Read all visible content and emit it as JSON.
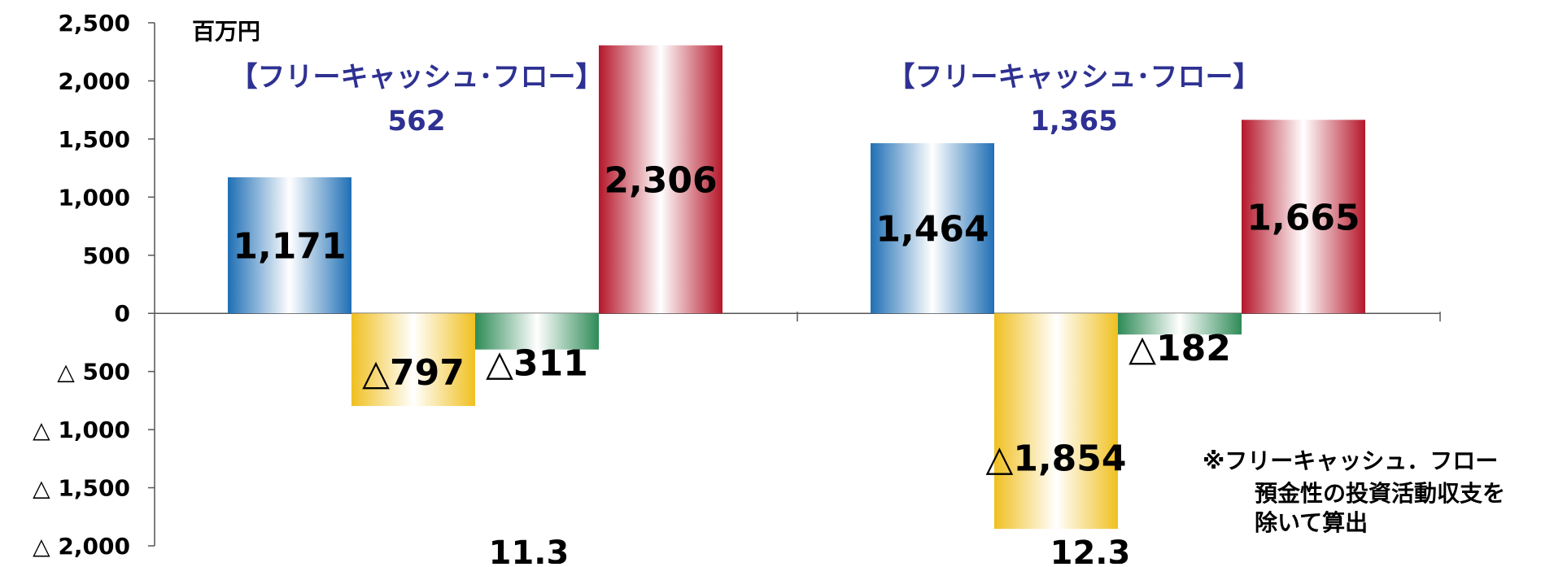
{
  "chart_data": {
    "type": "bar",
    "unit_label": "百万円",
    "categories": [
      "11.3",
      "12.3"
    ],
    "series": [
      {
        "values": [
          1171,
          1464
        ],
        "labels": [
          "1,171",
          "1,464"
        ],
        "color": "#1f6fb5"
      },
      {
        "values": [
          -797,
          -1854
        ],
        "labels": [
          "△797",
          "△1,854"
        ],
        "color": "#f0c020"
      },
      {
        "values": [
          -311,
          -182
        ],
        "labels": [
          "△311",
          "△182"
        ],
        "color": "#2e8b57"
      },
      {
        "values": [
          2306,
          1665
        ],
        "labels": [
          "2,306",
          "1,665"
        ],
        "color": "#b5172a"
      }
    ],
    "ylim": [
      -2000,
      2500
    ],
    "yticks": [
      2500,
      2000,
      1500,
      1000,
      500,
      0,
      -500,
      -1000,
      -1500,
      -2000
    ],
    "ytick_labels": [
      "2,500",
      "2,000",
      "1,500",
      "1,000",
      "500",
      "0",
      "△ 500",
      "△ 1,000",
      "△ 1,500",
      "△ 2,000"
    ],
    "annotations": [
      {
        "title": "【フリーキャッシュ･フロー】",
        "value": "562"
      },
      {
        "title": "【フリーキャッシュ･フロー】",
        "value": "1,365"
      }
    ],
    "note": [
      "※フリーキャッシュ．フロー",
      "預金性の投資活動収支を",
      "除いて算出"
    ]
  }
}
